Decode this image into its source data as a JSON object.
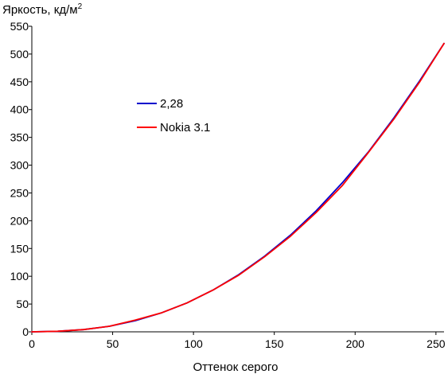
{
  "chart_data": {
    "type": "line",
    "ylabel_main": "Яркость, кд/м",
    "ylabel_sup": "2",
    "xlabel": "Оттенок серого",
    "xlim": [
      0,
      255
    ],
    "ylim": [
      0,
      550
    ],
    "x_ticks": [
      0,
      50,
      100,
      150,
      200,
      250
    ],
    "y_ticks": [
      0,
      50,
      100,
      150,
      200,
      250,
      300,
      350,
      400,
      450,
      500,
      550
    ],
    "legend": {
      "placement": "center-left"
    },
    "grid": false,
    "series": [
      {
        "name": "2,28",
        "color": "#0000cc",
        "x": [
          0,
          16,
          32,
          48,
          64,
          80,
          96,
          112,
          128,
          144,
          160,
          176,
          192,
          208,
          224,
          240,
          255
        ],
        "y": [
          0,
          1,
          4,
          10,
          20,
          34,
          52,
          75,
          103,
          136,
          174,
          218,
          268,
          323,
          385,
          452,
          519
        ]
      },
      {
        "name": "Nokia 3.1",
        "color": "#ff0000",
        "x": [
          0,
          16,
          32,
          48,
          64,
          80,
          96,
          112,
          128,
          144,
          160,
          176,
          192,
          208,
          224,
          240,
          255
        ],
        "y": [
          0,
          1,
          4,
          10,
          21,
          34,
          52,
          75,
          102,
          135,
          172,
          215,
          263,
          322,
          383,
          450,
          519
        ]
      }
    ]
  }
}
